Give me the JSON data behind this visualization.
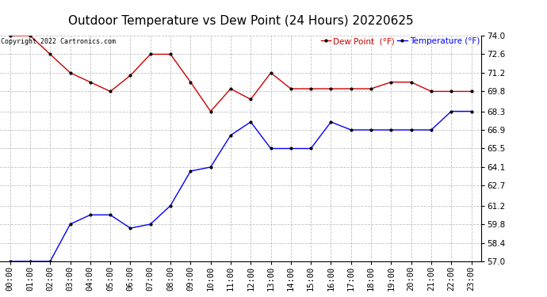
{
  "title": "Outdoor Temperature vs Dew Point (24 Hours) 20220625",
  "copyright": "Copyright 2022 Cartronics.com",
  "legend_dew": "Dew Point  (°F)",
  "legend_temp": "Temperature (°F)",
  "x_labels": [
    "00:00",
    "01:00",
    "02:00",
    "03:00",
    "04:00",
    "05:00",
    "06:00",
    "07:00",
    "08:00",
    "09:00",
    "10:00",
    "11:00",
    "12:00",
    "13:00",
    "14:00",
    "15:00",
    "16:00",
    "17:00",
    "18:00",
    "19:00",
    "20:00",
    "21:00",
    "22:00",
    "23:00"
  ],
  "temperature": [
    57.0,
    57.0,
    57.0,
    59.8,
    60.5,
    60.5,
    59.5,
    59.8,
    61.2,
    63.8,
    64.1,
    66.5,
    67.5,
    65.5,
    65.5,
    65.5,
    67.5,
    66.9,
    66.9,
    66.9,
    66.9,
    66.9,
    68.3,
    68.3
  ],
  "dew_point": [
    74.0,
    74.0,
    72.6,
    71.2,
    70.5,
    69.8,
    71.0,
    72.6,
    72.6,
    70.5,
    68.3,
    70.0,
    69.2,
    71.2,
    70.0,
    70.0,
    70.0,
    70.0,
    70.0,
    70.5,
    70.5,
    69.8,
    69.8,
    69.8
  ],
  "ylim_min": 57.0,
  "ylim_max": 74.0,
  "y_ticks": [
    57.0,
    58.4,
    59.8,
    61.2,
    62.7,
    64.1,
    65.5,
    66.9,
    68.3,
    69.8,
    71.2,
    72.6,
    74.0
  ],
  "temp_color": "#0000ff",
  "dew_color": "#cc0000",
  "bg_color": "#ffffff",
  "grid_color": "#bbbbbb",
  "title_fontsize": 11,
  "tick_fontsize": 7.5
}
